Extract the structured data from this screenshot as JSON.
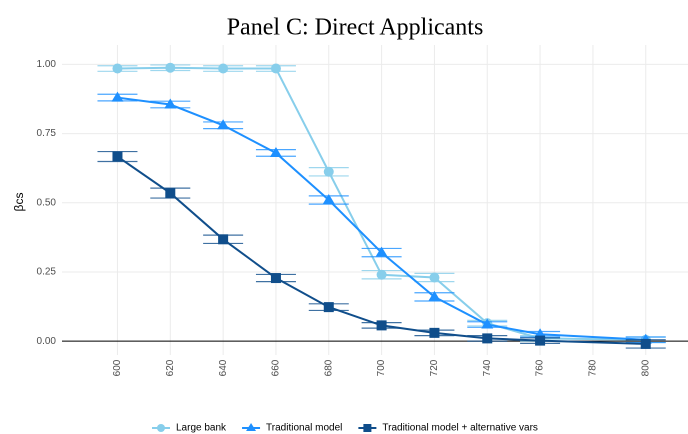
{
  "chart_data": {
    "type": "line",
    "title": "Panel C: Direct Applicants",
    "y_label": "βcs",
    "x": [
      600,
      620,
      640,
      660,
      680,
      700,
      720,
      740,
      760,
      800
    ],
    "series": [
      {
        "name": "Large bank",
        "color": "#87ceeb",
        "marker": "circle",
        "values": [
          0.985,
          0.988,
          0.985,
          0.985,
          0.612,
          0.24,
          0.23,
          0.065,
          0.01,
          0.005
        ],
        "errors": [
          0.01,
          0.01,
          0.01,
          0.01,
          0.015,
          0.015,
          0.015,
          0.01,
          0.01,
          0.01
        ]
      },
      {
        "name": "Traditional model",
        "color": "#1e90ff",
        "marker": "triangle",
        "values": [
          0.88,
          0.855,
          0.78,
          0.68,
          0.51,
          0.32,
          0.16,
          0.06,
          0.025,
          0.005
        ],
        "errors": [
          0.012,
          0.012,
          0.012,
          0.012,
          0.015,
          0.015,
          0.015,
          0.01,
          0.01,
          0.01
        ]
      },
      {
        "name": "Traditional model + alternative vars",
        "color": "#104e8b",
        "marker": "square",
        "values": [
          0.667,
          0.535,
          0.368,
          0.228,
          0.123,
          0.057,
          0.03,
          0.01,
          0.002,
          -0.01
        ],
        "errors": [
          0.018,
          0.018,
          0.015,
          0.013,
          0.012,
          0.01,
          0.01,
          0.01,
          0.01,
          0.015
        ]
      }
    ],
    "xlim": [
      579,
      816
    ],
    "ylim": [
      -0.05,
      1.07
    ],
    "xticks": [
      600,
      620,
      640,
      660,
      680,
      700,
      720,
      740,
      760,
      780,
      800
    ],
    "yticks": [
      {
        "value": 0,
        "label": "0.00"
      },
      {
        "value": 0.25,
        "label": "0.25"
      },
      {
        "value": 0.5,
        "label": "0.50"
      },
      {
        "value": 0.75,
        "label": "0.75"
      },
      {
        "value": 1,
        "label": "1.00"
      }
    ],
    "grid": true
  }
}
